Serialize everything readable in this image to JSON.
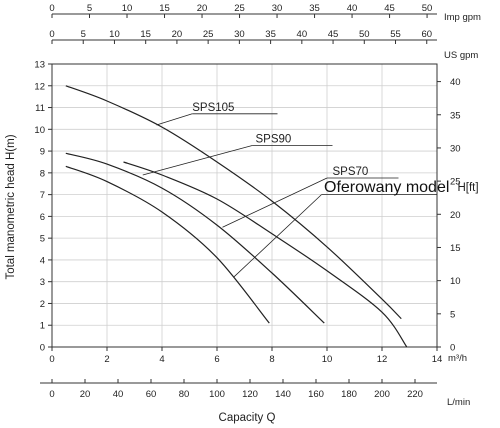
{
  "chart_data": {
    "type": "line",
    "xlabel": "Capacity Q",
    "ylabel_left": "Total manometric head H(m)",
    "ylabel_right": "H[ft]",
    "x_unit": "m³/h",
    "xlim": [
      0,
      14
    ],
    "ylim": [
      0,
      13
    ],
    "y2lim_ft": [
      0,
      42.65
    ],
    "x_ticks": [
      0,
      2,
      4,
      6,
      8,
      10,
      12,
      14
    ],
    "y_ticks": [
      0,
      1,
      2,
      3,
      4,
      5,
      6,
      7,
      8,
      9,
      10,
      11,
      12,
      13
    ],
    "y2_ticks": [
      0,
      5,
      10,
      15,
      20,
      25,
      30,
      35,
      40
    ],
    "secondary_x_axes": [
      {
        "unit": "Imp gpm",
        "position": "top",
        "ticks": [
          0,
          5,
          10,
          15,
          20,
          25,
          30,
          35,
          40,
          45,
          50
        ],
        "per_m3h": 3.666
      },
      {
        "unit": "US gpm",
        "position": "top",
        "ticks": [
          0,
          5,
          10,
          15,
          20,
          25,
          30,
          35,
          40,
          45,
          50,
          55,
          60
        ],
        "per_m3h": 4.403
      },
      {
        "unit": "L/min",
        "position": "bottom",
        "ticks": [
          0,
          20,
          40,
          60,
          80,
          100,
          120,
          140,
          160,
          180,
          200,
          220
        ],
        "per_m3h": 16.667
      }
    ],
    "series": [
      {
        "name": "SPS105",
        "x": [
          0.5,
          2,
          4,
          6,
          8,
          10,
          12,
          12.7
        ],
        "y": [
          12.0,
          11.3,
          10.1,
          8.5,
          6.7,
          4.6,
          2.2,
          1.3
        ]
      },
      {
        "name": "SPS90",
        "x": [
          2.6,
          4,
          6,
          8,
          10,
          12,
          12.9
        ],
        "y": [
          8.5,
          7.9,
          6.8,
          5.2,
          3.5,
          1.6,
          0.0
        ]
      },
      {
        "name": "SPS70",
        "x": [
          0.5,
          2,
          4,
          6,
          8,
          9.9
        ],
        "y": [
          8.9,
          8.4,
          7.3,
          5.6,
          3.4,
          1.1
        ]
      },
      {
        "name": "",
        "x": [
          0.5,
          2,
          4,
          6,
          7.9
        ],
        "y": [
          8.3,
          7.6,
          6.2,
          4.1,
          1.1
        ]
      }
    ],
    "series_labels": [
      "SPS105",
      "SPS90",
      "SPS70"
    ],
    "annotation": "Oferowany model",
    "grid": true,
    "legend": "inline labels"
  }
}
